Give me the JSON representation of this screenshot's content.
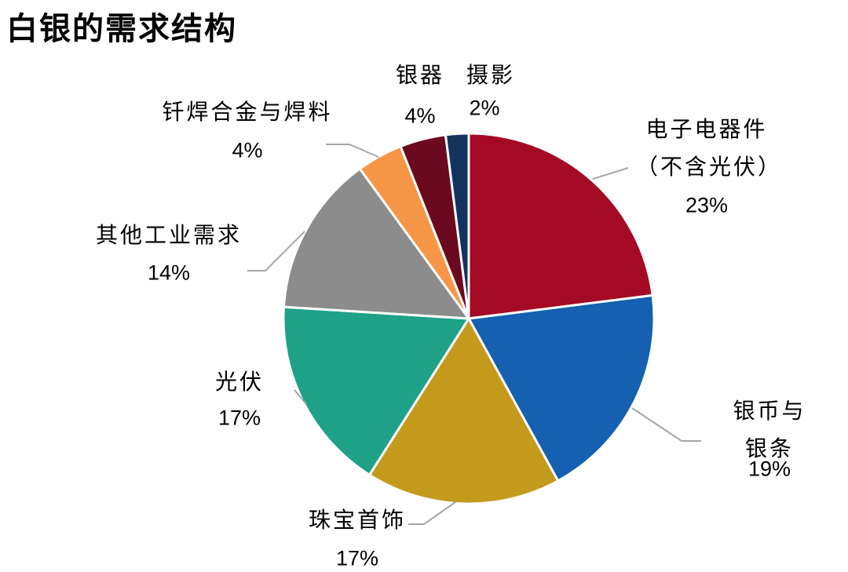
{
  "chart_data": {
    "type": "pie",
    "title": "白银的需求结构",
    "categories": [
      "电子电器件\n（不含光伏）",
      "银币与银条",
      "珠宝首饰",
      "光伏",
      "其他工业需求",
      "钎焊合金与焊料",
      "银器",
      "摄影"
    ],
    "values": [
      23,
      19,
      17,
      17,
      14,
      4,
      4,
      2
    ],
    "value_labels": [
      "23%",
      "19%",
      "17%",
      "17%",
      "14%",
      "4%",
      "4%",
      "2%"
    ],
    "colors": [
      "#A50A24",
      "#1560B0",
      "#C49A1C",
      "#1FA187",
      "#8C8C8C",
      "#F79646",
      "#6B0A1E",
      "#12335E"
    ]
  }
}
